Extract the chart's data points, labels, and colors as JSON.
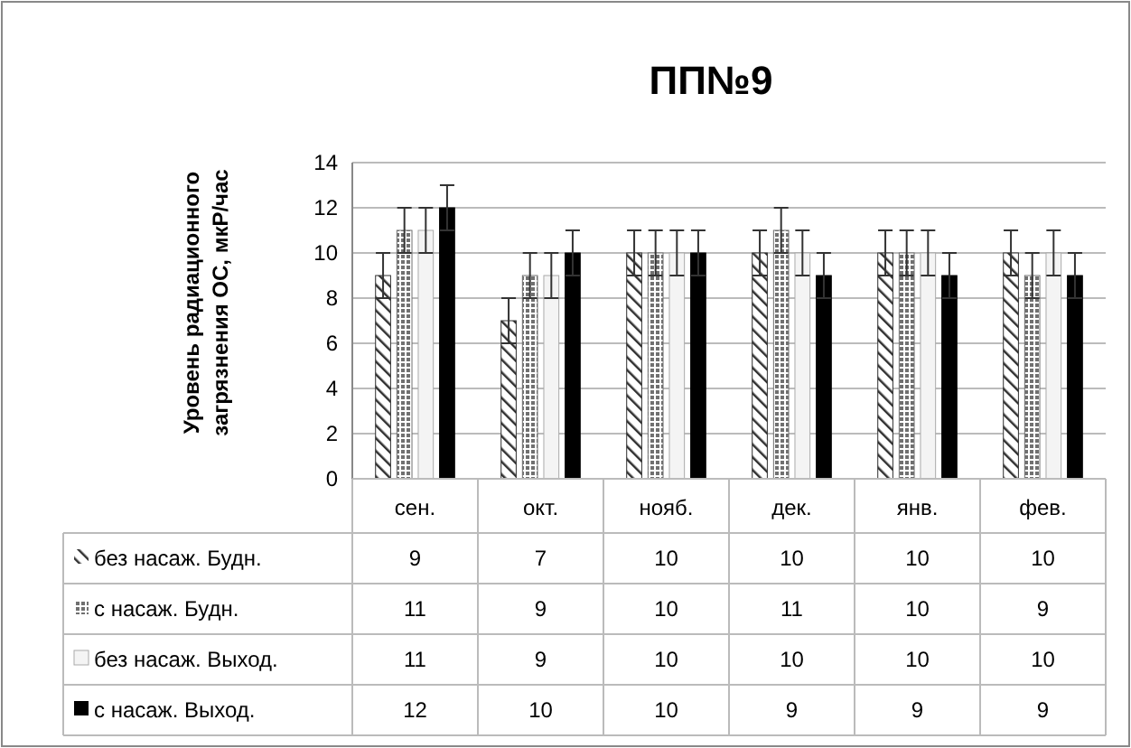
{
  "chart_data": {
    "type": "bar",
    "title": "ПП№9",
    "ylabel": "Уровень радиационного загрязнения ОС, мкР/час",
    "categories": [
      "сен.",
      "окт.",
      "нояб.",
      "дек.",
      "янв.",
      "фев."
    ],
    "series": [
      {
        "name": "без насаж. Будн.",
        "color": "#303030",
        "values": [
          9,
          7,
          10,
          10,
          10,
          10
        ],
        "errors": [
          1,
          1,
          1,
          1,
          1,
          1
        ]
      },
      {
        "name": "с насаж. Будн.",
        "color": "#707070",
        "values": [
          11,
          9,
          10,
          11,
          10,
          9
        ],
        "errors": [
          1,
          1,
          1,
          1,
          1,
          1
        ]
      },
      {
        "name": "без насаж. Выход.",
        "color": "#f4f4f4",
        "values": [
          11,
          9,
          10,
          10,
          10,
          10
        ],
        "errors": [
          1,
          1,
          1,
          1,
          1,
          1
        ]
      },
      {
        "name": "с насаж. Выход.",
        "color": "#000000",
        "values": [
          12,
          10,
          10,
          9,
          9,
          9
        ],
        "errors": [
          1,
          1,
          1,
          1,
          1,
          1
        ]
      }
    ],
    "ylim": [
      0,
      14
    ],
    "yticks": [
      0,
      2,
      4,
      6,
      8,
      10,
      12,
      14
    ],
    "grid": "y",
    "legend": "bottom",
    "data_labels": true
  }
}
